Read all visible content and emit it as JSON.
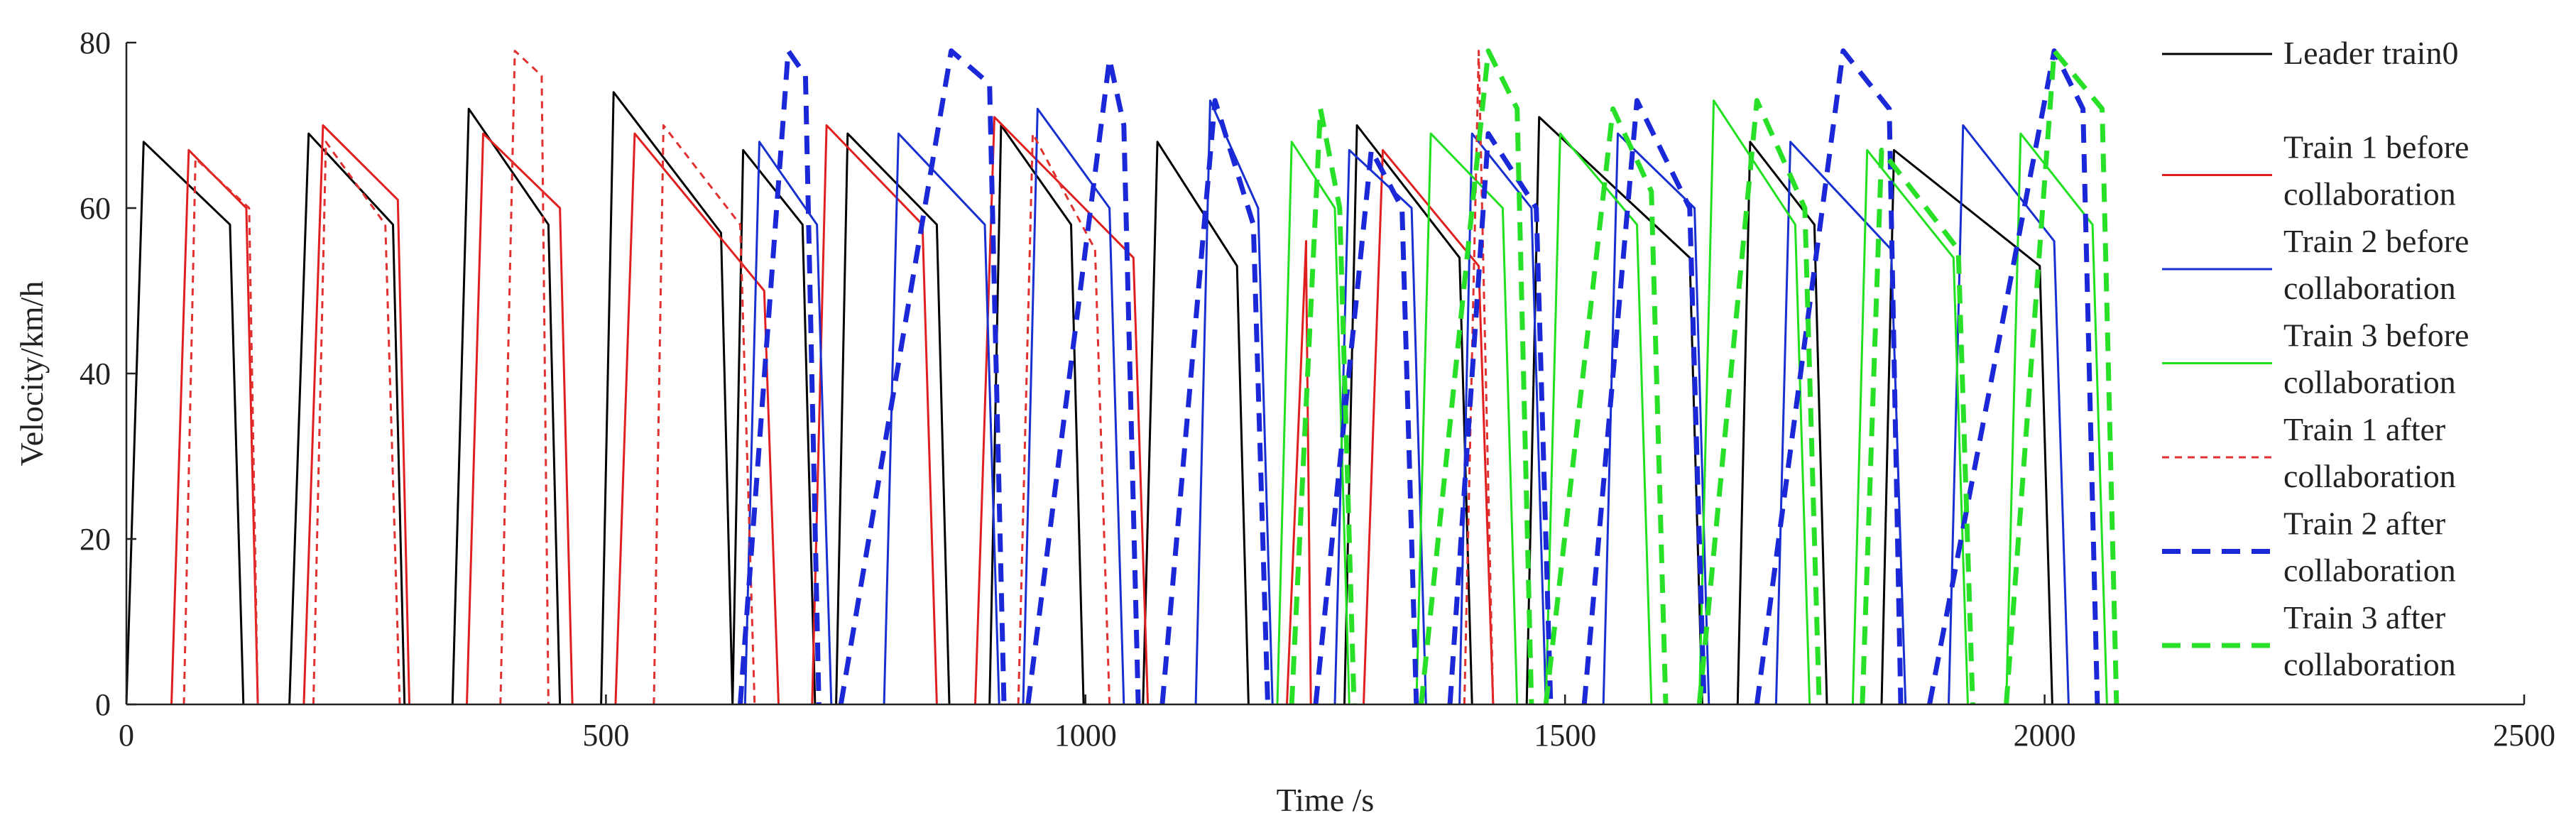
{
  "chart_data": {
    "type": "line",
    "title": "",
    "xlabel": "Time /s",
    "ylabel": "Velocity/km/h",
    "xlim": [
      0,
      2500
    ],
    "ylim": [
      0,
      80
    ],
    "x_ticks": [
      0,
      500,
      1000,
      1500,
      2000,
      2500
    ],
    "y_ticks": [
      0,
      20,
      40,
      60,
      80
    ],
    "x_tick_labels": [
      "0",
      "500",
      "1000",
      "1500",
      "2000",
      "2500"
    ],
    "y_tick_labels": [
      "0",
      "20",
      "40",
      "60",
      "80"
    ],
    "grid": false,
    "legend_position": "right",
    "series": [
      {
        "name": "Leader train0",
        "label_lines": [
          "Leader train0"
        ],
        "color": "#000000",
        "style": "solid",
        "cycles": [
          [
            0,
            18,
            108,
            122,
            0
          ],
          [
            170,
            190,
            278,
            290,
            0
          ],
          [
            340,
            357,
            440,
            452,
            0
          ],
          [
            495,
            508,
            620,
            632,
            0
          ],
          [
            632,
            643,
            705,
            718,
            0
          ],
          [
            740,
            752,
            845,
            858,
            0
          ],
          [
            900,
            912,
            985,
            998,
            0
          ],
          [
            1060,
            1075,
            1158,
            1170,
            0
          ],
          [
            1270,
            1283,
            1390,
            1403,
            0
          ],
          [
            1460,
            1473,
            1630,
            1643,
            0
          ],
          [
            1680,
            1693,
            1760,
            1773,
            0
          ],
          [
            1830,
            1843,
            1995,
            2008,
            0
          ]
        ],
        "peaks": [
          68,
          69,
          72,
          74,
          67,
          69,
          70,
          68,
          70,
          71,
          68,
          67
        ],
        "ends": [
          58,
          58,
          58,
          57,
          58,
          58,
          58,
          53,
          54,
          54,
          58,
          53
        ]
      },
      {
        "name": "Train 1 before collaboration",
        "label_lines": [
          "Train 1 before",
          "collaboration"
        ],
        "color": "#e02020",
        "style": "solid",
        "cycles": [
          [
            47,
            65,
            125,
            137,
            0
          ],
          [
            185,
            205,
            283,
            295,
            0
          ],
          [
            355,
            372,
            452,
            465,
            0
          ],
          [
            510,
            530,
            665,
            680,
            0
          ],
          [
            715,
            730,
            830,
            845,
            0
          ],
          [
            885,
            905,
            1050,
            1065,
            0
          ],
          [
            1210,
            1230,
            1230,
            1235,
            0
          ],
          [
            1290,
            1310,
            1410,
            1425,
            0
          ]
        ],
        "peaks": [
          67,
          70,
          69,
          69,
          70,
          71,
          56,
          67
        ],
        "ends": [
          60,
          61,
          60,
          50,
          58,
          54,
          54,
          53
        ]
      },
      {
        "name": "Train 2 before collaboration",
        "label_lines": [
          "Train 2 before",
          "collaboration"
        ],
        "color": "#1830d0",
        "style": "solid",
        "cycles": [
          [
            645,
            660,
            720,
            735,
            0
          ],
          [
            790,
            805,
            895,
            910,
            0
          ],
          [
            935,
            950,
            1025,
            1040,
            0
          ],
          [
            1115,
            1130,
            1180,
            1195,
            0
          ],
          [
            1260,
            1275,
            1340,
            1355,
            0
          ],
          [
            1390,
            1403,
            1465,
            1480,
            0
          ],
          [
            1540,
            1555,
            1635,
            1650,
            0
          ],
          [
            1720,
            1735,
            1840,
            1855,
            0
          ],
          [
            1900,
            1915,
            2010,
            2025,
            0
          ]
        ],
        "peaks": [
          68,
          69,
          72,
          73,
          67,
          69,
          69,
          68,
          70
        ],
        "ends": [
          58,
          58,
          60,
          60,
          60,
          60,
          60,
          55,
          56
        ]
      },
      {
        "name": "Train 3 before collaboration",
        "label_lines": [
          "Train 3 before",
          "collaboration"
        ],
        "color": "#20e020",
        "style": "solid",
        "cycles": [
          [
            1200,
            1215,
            1260,
            1275,
            0
          ],
          [
            1345,
            1360,
            1435,
            1450,
            0
          ],
          [
            1480,
            1495,
            1575,
            1590,
            0
          ],
          [
            1640,
            1655,
            1740,
            1755,
            0
          ],
          [
            1800,
            1815,
            1905,
            1920,
            0
          ],
          [
            1960,
            1975,
            2050,
            2065,
            0
          ]
        ],
        "peaks": [
          68,
          69,
          69,
          73,
          67,
          69
        ],
        "ends": [
          60,
          60,
          58,
          58,
          54,
          58
        ]
      },
      {
        "name": "Train 1 after collaboration",
        "label_lines": [
          "Train 1 after",
          "collaboration"
        ],
        "color": "#e03030",
        "style": "dotted",
        "cycles": [
          [
            60,
            72,
            128,
            137,
            0
          ],
          [
            195,
            208,
            270,
            285,
            0
          ],
          [
            390,
            405,
            433,
            440,
            0
          ],
          [
            550,
            560,
            640,
            655,
            0
          ],
          [
            930,
            945,
            1010,
            1025,
            0
          ],
          [
            1395,
            1410,
            1415,
            1425,
            0
          ]
        ],
        "peaks": [
          66,
          68,
          79,
          70,
          69,
          79
        ],
        "ends": [
          60,
          58,
          76,
          58,
          55,
          52
        ]
      },
      {
        "name": "Train 2 after collaboration",
        "label_lines": [
          "Train 2 after",
          "collaboration"
        ],
        "color": "#1a28d8",
        "style": "dashed",
        "cycles": [
          [
            640,
            690,
            708,
            722,
            0
          ],
          [
            745,
            860,
            900,
            915,
            0
          ],
          [
            940,
            1025,
            1040,
            1055,
            0
          ],
          [
            1080,
            1135,
            1175,
            1190,
            0
          ],
          [
            1240,
            1298,
            1330,
            1345,
            0
          ],
          [
            1380,
            1420,
            1470,
            1485,
            0
          ],
          [
            1520,
            1575,
            1630,
            1645,
            0
          ],
          [
            1700,
            1790,
            1838,
            1850,
            0
          ],
          [
            1880,
            2010,
            2040,
            2055,
            0
          ]
        ],
        "peaks": [
          79,
          79,
          78,
          73,
          67,
          69,
          73,
          79,
          79
        ],
        "ends": [
          76,
          75,
          70,
          58,
          60,
          60,
          60,
          72,
          72
        ]
      },
      {
        "name": "Train 3 after collaboration",
        "label_lines": [
          "Train 3 after",
          "collaboration"
        ],
        "color": "#28e028",
        "style": "dashed",
        "cycles": [
          [
            1215,
            1245,
            1265,
            1280,
            0
          ],
          [
            1350,
            1420,
            1450,
            1465,
            0
          ],
          [
            1480,
            1550,
            1590,
            1605,
            0
          ],
          [
            1640,
            1700,
            1750,
            1765,
            0
          ],
          [
            1810,
            1830,
            1910,
            1925,
            0
          ],
          [
            1960,
            2010,
            2060,
            2075,
            0
          ]
        ],
        "peaks": [
          72,
          79,
          72,
          73,
          67,
          79
        ],
        "ends": [
          60,
          72,
          62,
          60,
          55,
          72
        ]
      }
    ]
  }
}
